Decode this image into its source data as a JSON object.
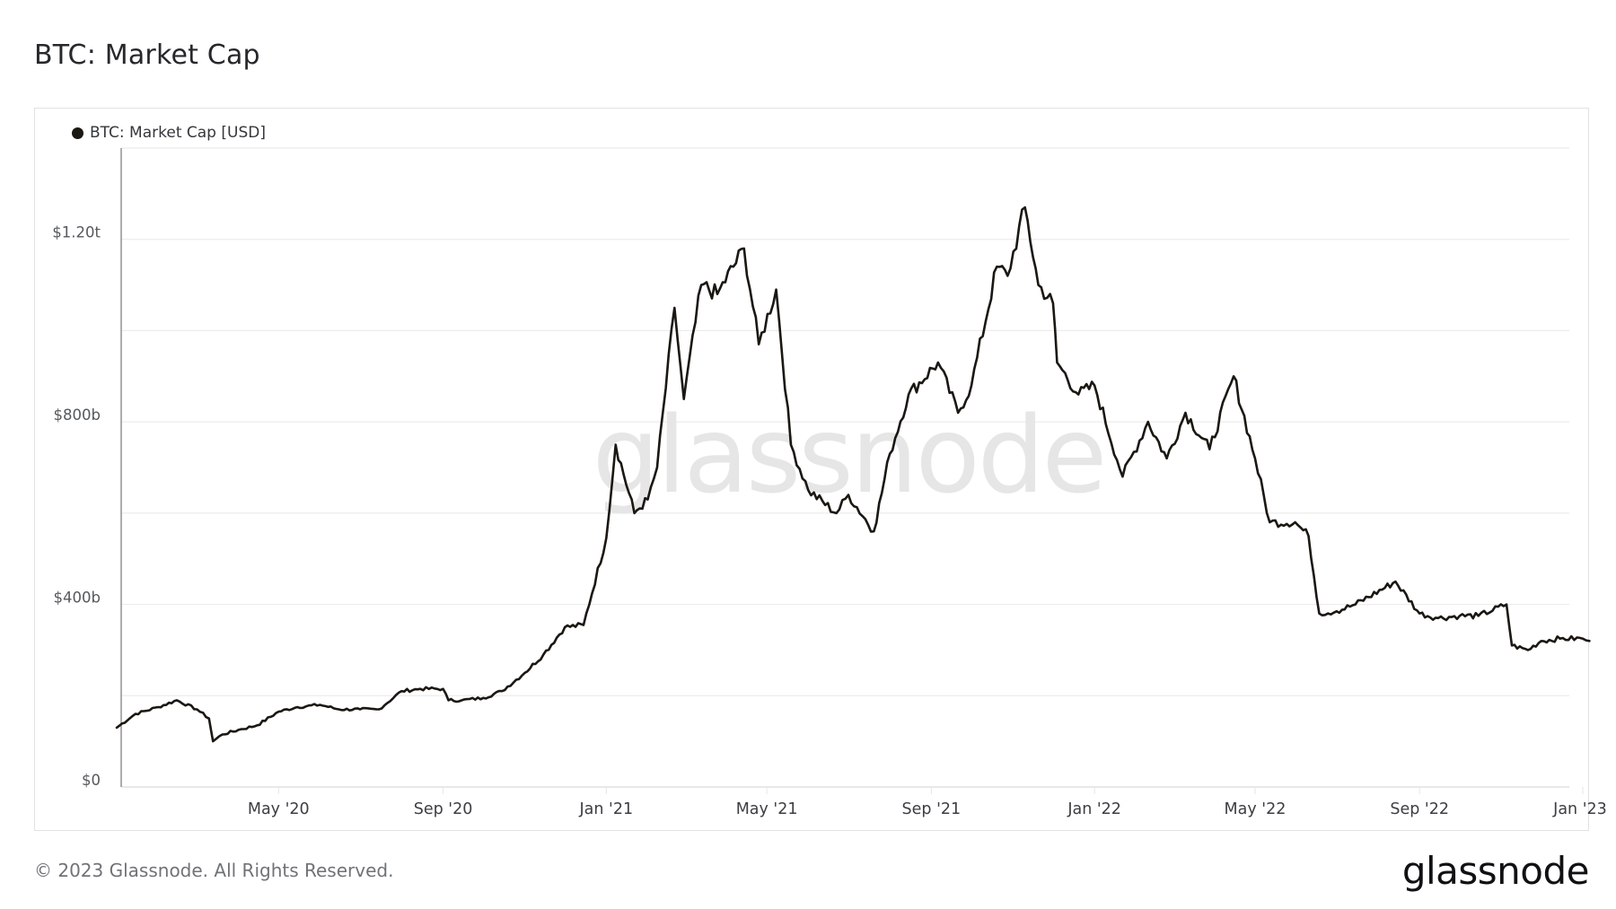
{
  "page": {
    "title": "BTC: Market Cap",
    "footer": "© 2023 Glassnode. All Rights Reserved.",
    "logo": "glassnode",
    "watermark": "glassnode"
  },
  "legend": {
    "label": "BTC: Market Cap [USD]",
    "color": "#1b1712"
  },
  "colors": {
    "line": "#1b1712",
    "grid": "#ececec",
    "axis": "#8a8a8a",
    "watermark": "#e6e6e6"
  },
  "chart_data": {
    "type": "line",
    "title": "BTC: Market Cap",
    "xlabel": "",
    "ylabel": "",
    "ylim": [
      0,
      1400
    ],
    "y_unit": "billion USD",
    "y_ticks": [
      {
        "value": 0,
        "label": "$0"
      },
      {
        "value": 400,
        "label": "$400b"
      },
      {
        "value": 800,
        "label": "$800b"
      },
      {
        "value": 1200,
        "label": "$1.20t"
      }
    ],
    "y_gridlines": [
      0,
      200,
      400,
      600,
      800,
      1000,
      1200,
      1400
    ],
    "x_ticks": [
      "May '20",
      "Sep '20",
      "Jan '21",
      "May '21",
      "Sep '21",
      "Jan '22",
      "May '22",
      "Sep '22",
      "Jan '23"
    ],
    "grid": true,
    "legend_position": "top-left",
    "series": [
      {
        "name": "BTC: Market Cap [USD]",
        "x": [
          "2020-01-01",
          "2020-01-15",
          "2020-02-01",
          "2020-02-15",
          "2020-03-01",
          "2020-03-10",
          "2020-03-13",
          "2020-03-20",
          "2020-04-01",
          "2020-04-15",
          "2020-05-01",
          "2020-05-15",
          "2020-06-01",
          "2020-06-15",
          "2020-07-01",
          "2020-07-15",
          "2020-08-01",
          "2020-08-15",
          "2020-09-01",
          "2020-09-05",
          "2020-09-15",
          "2020-10-01",
          "2020-10-15",
          "2020-11-01",
          "2020-11-15",
          "2020-12-01",
          "2020-12-15",
          "2021-01-01",
          "2021-01-08",
          "2021-01-22",
          "2021-02-01",
          "2021-02-08",
          "2021-02-21",
          "2021-02-28",
          "2021-03-13",
          "2021-03-25",
          "2021-04-14",
          "2021-04-25",
          "2021-05-08",
          "2021-05-19",
          "2021-06-01",
          "2021-06-22",
          "2021-07-01",
          "2021-07-20",
          "2021-08-01",
          "2021-08-15",
          "2021-09-06",
          "2021-09-21",
          "2021-10-01",
          "2021-10-20",
          "2021-10-28",
          "2021-11-10",
          "2021-11-20",
          "2021-12-01",
          "2021-12-04",
          "2021-12-20",
          "2022-01-01",
          "2022-01-22",
          "2022-02-10",
          "2022-02-24",
          "2022-03-10",
          "2022-03-28",
          "2022-04-15",
          "2022-05-01",
          "2022-05-12",
          "2022-05-31",
          "2022-06-10",
          "2022-06-18",
          "2022-07-01",
          "2022-07-15",
          "2022-08-14",
          "2022-09-01",
          "2022-09-15",
          "2022-10-01",
          "2022-10-15",
          "2022-11-05",
          "2022-11-09",
          "2022-11-21",
          "2022-12-01",
          "2022-12-15",
          "2023-01-01",
          "2023-01-06"
        ],
        "values": [
          130,
          160,
          175,
          190,
          170,
          150,
          100,
          115,
          125,
          135,
          165,
          175,
          180,
          170,
          170,
          170,
          210,
          215,
          215,
          190,
          190,
          195,
          210,
          250,
          290,
          350,
          355,
          545,
          750,
          600,
          630,
          700,
          1050,
          850,
          1100,
          1080,
          1180,
          970,
          1090,
          750,
          650,
          600,
          640,
          560,
          730,
          860,
          930,
          820,
          880,
          1140,
          1120,
          1270,
          1100,
          1060,
          930,
          860,
          880,
          680,
          800,
          720,
          820,
          740,
          900,
          720,
          580,
          580,
          550,
          380,
          385,
          400,
          450,
          380,
          370,
          375,
          375,
          400,
          310,
          300,
          320,
          325,
          325,
          320
        ]
      }
    ]
  }
}
